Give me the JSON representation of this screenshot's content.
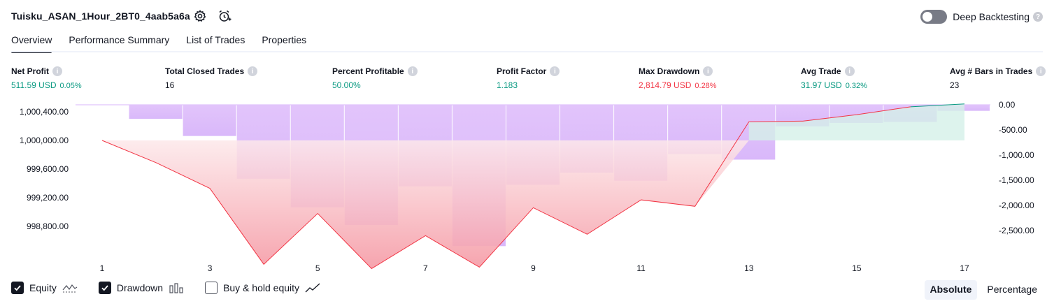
{
  "header": {
    "title": "Tuisku_ASAN_1Hour_2BT0_4aab5a6a",
    "deep_backtesting_label": "Deep Backtesting",
    "help_glyph": "?"
  },
  "tabs": [
    {
      "label": "Overview"
    },
    {
      "label": "Performance Summary"
    },
    {
      "label": "List of Trades"
    },
    {
      "label": "Properties"
    }
  ],
  "metrics": [
    {
      "label": "Net Profit",
      "value": "511.59 USD",
      "pct": "0.05%"
    },
    {
      "label": "Total Closed Trades",
      "value": "16"
    },
    {
      "label": "Percent Profitable",
      "value": "50.00%"
    },
    {
      "label": "Profit Factor",
      "value": "1.183"
    },
    {
      "label": "Max Drawdown",
      "value": "2,814.79 USD",
      "pct": "0.28%"
    },
    {
      "label": "Avg Trade",
      "value": "31.97 USD",
      "pct": "0.32%"
    },
    {
      "label": "Avg # Bars in Trades",
      "value": "23"
    }
  ],
  "info_glyph": "i",
  "colors": {
    "positive": "#089981",
    "negative": "#f23645",
    "drawdown_bar": "#d9b6fb",
    "equity_line": "#f23645",
    "equity_gain_fill": "#d4f0e8"
  },
  "chart_data": {
    "type": "line",
    "x": [
      1,
      2,
      3,
      4,
      5,
      6,
      7,
      8,
      9,
      10,
      11,
      12,
      13,
      14,
      15,
      16,
      17
    ],
    "x_tick_labels": [
      "1",
      "3",
      "5",
      "7",
      "9",
      "11",
      "13",
      "15",
      "17"
    ],
    "series": [
      {
        "name": "Equity",
        "type": "line",
        "axis": "left",
        "values": [
          1000000,
          999690,
          999330,
          998270,
          998980,
          998210,
          998670,
          998230,
          999060,
          998690,
          999170,
          999080,
          1000260,
          1000270,
          1000360,
          1000470,
          1000510
        ]
      },
      {
        "name": "Drawdown",
        "type": "bar",
        "axis": "right",
        "values": [
          0,
          -280,
          -620,
          -1470,
          -2040,
          -2390,
          -1620,
          -2810,
          -1590,
          -1350,
          -1510,
          -980,
          -1090,
          -430,
          -360,
          -340,
          -120
        ]
      }
    ],
    "left_axis": {
      "ticks": [
        998800,
        999200,
        999600,
        1000000,
        1000400
      ],
      "tick_labels": [
        "998,800.00",
        "999,200.00",
        "999,600.00",
        "1,000,000.00",
        "1,000,400.00"
      ]
    },
    "right_axis": {
      "ticks": [
        0,
        -500,
        -1000,
        -1500,
        -2000,
        -2500
      ],
      "tick_labels": [
        "0.00",
        "-500.00",
        "-1,000.00",
        "-1,500.00",
        "-2,000.00",
        "-2,500.00"
      ]
    },
    "grid": false
  },
  "legend": {
    "equity": {
      "label": "Equity",
      "checked": true
    },
    "drawdown": {
      "label": "Drawdown",
      "checked": true
    },
    "buy_hold": {
      "label": "Buy & hold equity",
      "checked": false
    }
  },
  "modes": {
    "absolute": "Absolute",
    "percentage": "Percentage",
    "active": "absolute"
  }
}
